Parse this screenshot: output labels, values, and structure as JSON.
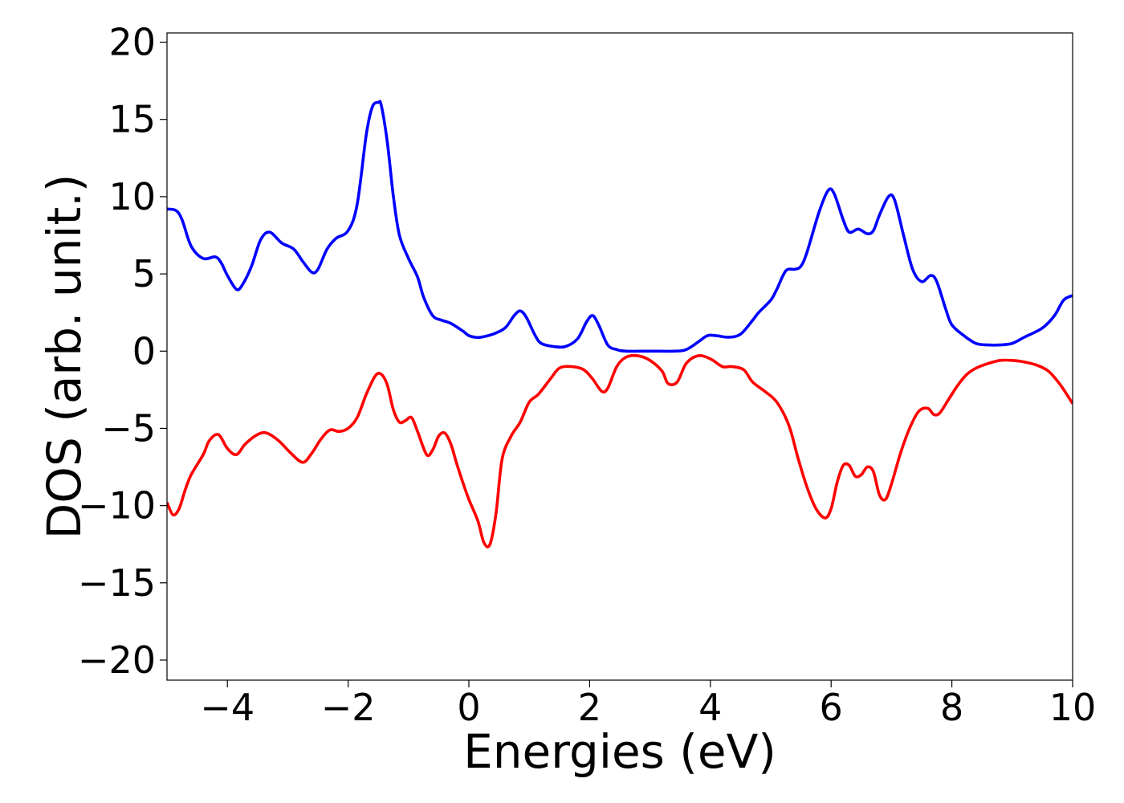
{
  "chart_data": {
    "type": "line",
    "title": "",
    "xlabel": "Energies (eV)",
    "ylabel": "DOS (arb. unit.)",
    "xlim": [
      -5,
      10
    ],
    "ylim": [
      -21.3,
      20.6
    ],
    "grid": false,
    "legend": "none",
    "xticks": [
      -4,
      -2,
      0,
      2,
      4,
      6,
      8,
      10
    ],
    "xtick_labels": [
      "−4",
      "−2",
      "0",
      "2",
      "4",
      "6",
      "8",
      "10"
    ],
    "yticks": [
      20,
      15,
      10,
      5,
      0,
      -5,
      -10,
      -15,
      -20
    ],
    "ytick_labels": [
      "20",
      "15",
      "10",
      "5",
      "0",
      "−5",
      "−10",
      "−15",
      "−20"
    ],
    "series": [
      {
        "color": "#0000ff",
        "x": [
          -5.0,
          -4.85,
          -4.75,
          -4.6,
          -4.4,
          -4.2,
          -4.1,
          -4.0,
          -3.85,
          -3.75,
          -3.6,
          -3.45,
          -3.3,
          -3.1,
          -2.9,
          -2.75,
          -2.6,
          -2.5,
          -2.35,
          -2.2,
          -2.0,
          -1.85,
          -1.7,
          -1.6,
          -1.5,
          -1.45,
          -1.35,
          -1.25,
          -1.15,
          -1.0,
          -0.85,
          -0.75,
          -0.6,
          -0.45,
          -0.3,
          -0.1,
          0.0,
          0.1,
          0.2,
          0.4,
          0.6,
          0.75,
          0.85,
          0.95,
          1.1,
          1.2,
          1.4,
          1.6,
          1.8,
          1.95,
          2.05,
          2.15,
          2.3,
          2.45,
          2.6,
          3.0,
          3.4,
          3.6,
          3.8,
          3.95,
          4.1,
          4.3,
          4.5,
          4.7,
          4.8,
          5.0,
          5.1,
          5.25,
          5.4,
          5.5,
          5.6,
          5.8,
          5.95,
          6.05,
          6.2,
          6.3,
          6.45,
          6.6,
          6.7,
          6.8,
          6.95,
          7.05,
          7.2,
          7.35,
          7.5,
          7.65,
          7.75,
          7.9,
          8.0,
          8.2,
          8.4,
          8.6,
          8.8,
          9.0,
          9.2,
          9.5,
          9.7,
          9.85,
          10.0
        ],
        "values": [
          9.2,
          9.1,
          8.5,
          6.8,
          6.0,
          6.1,
          5.7,
          4.9,
          4.0,
          4.3,
          5.5,
          7.2,
          7.7,
          7.0,
          6.6,
          5.8,
          5.1,
          5.3,
          6.6,
          7.3,
          7.8,
          9.5,
          14.0,
          15.8,
          16.1,
          15.9,
          13.5,
          10.0,
          7.5,
          6.0,
          4.8,
          3.5,
          2.3,
          2.0,
          1.8,
          1.3,
          1.0,
          0.9,
          0.9,
          1.1,
          1.5,
          2.3,
          2.6,
          2.2,
          1.0,
          0.5,
          0.3,
          0.3,
          0.8,
          1.9,
          2.3,
          1.7,
          0.4,
          0.1,
          0.0,
          0.0,
          0.0,
          0.1,
          0.6,
          1.0,
          1.0,
          0.9,
          1.1,
          2.0,
          2.5,
          3.3,
          4.0,
          5.2,
          5.3,
          5.5,
          6.4,
          9.0,
          10.4,
          10.2,
          8.5,
          7.7,
          7.9,
          7.6,
          7.8,
          8.8,
          10.0,
          9.8,
          7.5,
          5.3,
          4.5,
          4.9,
          4.5,
          2.7,
          1.7,
          1.0,
          0.5,
          0.4,
          0.4,
          0.5,
          0.9,
          1.5,
          2.3,
          3.3,
          3.6
        ]
      },
      {
        "color": "#ff0000",
        "x": [
          -5.0,
          -4.9,
          -4.8,
          -4.7,
          -4.6,
          -4.4,
          -4.3,
          -4.15,
          -4.0,
          -3.85,
          -3.7,
          -3.5,
          -3.35,
          -3.15,
          -2.95,
          -2.75,
          -2.6,
          -2.45,
          -2.3,
          -2.15,
          -2.0,
          -1.85,
          -1.7,
          -1.55,
          -1.45,
          -1.35,
          -1.25,
          -1.15,
          -1.05,
          -0.95,
          -0.85,
          -0.7,
          -0.6,
          -0.5,
          -0.4,
          -0.3,
          -0.2,
          -0.1,
          0.0,
          0.15,
          0.25,
          0.35,
          0.45,
          0.55,
          0.7,
          0.85,
          1.0,
          1.15,
          1.35,
          1.5,
          1.7,
          1.9,
          2.05,
          2.2,
          2.3,
          2.45,
          2.6,
          2.8,
          3.0,
          3.2,
          3.3,
          3.45,
          3.6,
          3.8,
          4.0,
          4.2,
          4.35,
          4.55,
          4.7,
          4.9,
          5.1,
          5.3,
          5.45,
          5.6,
          5.75,
          5.9,
          6.0,
          6.1,
          6.2,
          6.3,
          6.4,
          6.5,
          6.6,
          6.7,
          6.8,
          6.9,
          7.0,
          7.15,
          7.3,
          7.45,
          7.6,
          7.7,
          7.8,
          7.95,
          8.1,
          8.25,
          8.4,
          8.6,
          8.8,
          9.0,
          9.2,
          9.4,
          9.6,
          9.8,
          10.0
        ],
        "values": [
          -9.8,
          -10.6,
          -10.2,
          -9.0,
          -8.0,
          -6.7,
          -5.8,
          -5.4,
          -6.3,
          -6.7,
          -6.0,
          -5.4,
          -5.3,
          -5.8,
          -6.6,
          -7.2,
          -6.6,
          -5.7,
          -5.1,
          -5.2,
          -5.0,
          -4.3,
          -2.8,
          -1.6,
          -1.5,
          -2.2,
          -3.8,
          -4.6,
          -4.5,
          -4.3,
          -5.2,
          -6.7,
          -6.4,
          -5.5,
          -5.3,
          -6.0,
          -7.3,
          -8.5,
          -9.6,
          -11.0,
          -12.4,
          -12.5,
          -10.5,
          -7.0,
          -5.5,
          -4.6,
          -3.3,
          -2.8,
          -1.8,
          -1.1,
          -1.0,
          -1.2,
          -1.8,
          -2.6,
          -2.4,
          -1.0,
          -0.4,
          -0.3,
          -0.6,
          -1.3,
          -2.1,
          -2.0,
          -0.8,
          -0.3,
          -0.5,
          -1.0,
          -1.0,
          -1.2,
          -2.0,
          -2.6,
          -3.3,
          -4.8,
          -6.9,
          -8.8,
          -10.2,
          -10.8,
          -10.2,
          -8.5,
          -7.4,
          -7.4,
          -8.1,
          -8.0,
          -7.5,
          -7.8,
          -9.3,
          -9.6,
          -8.6,
          -6.6,
          -5.0,
          -3.9,
          -3.7,
          -4.1,
          -4.0,
          -3.1,
          -2.2,
          -1.5,
          -1.1,
          -0.8,
          -0.6,
          -0.6,
          -0.7,
          -0.9,
          -1.3,
          -2.2,
          -3.4
        ]
      }
    ]
  }
}
